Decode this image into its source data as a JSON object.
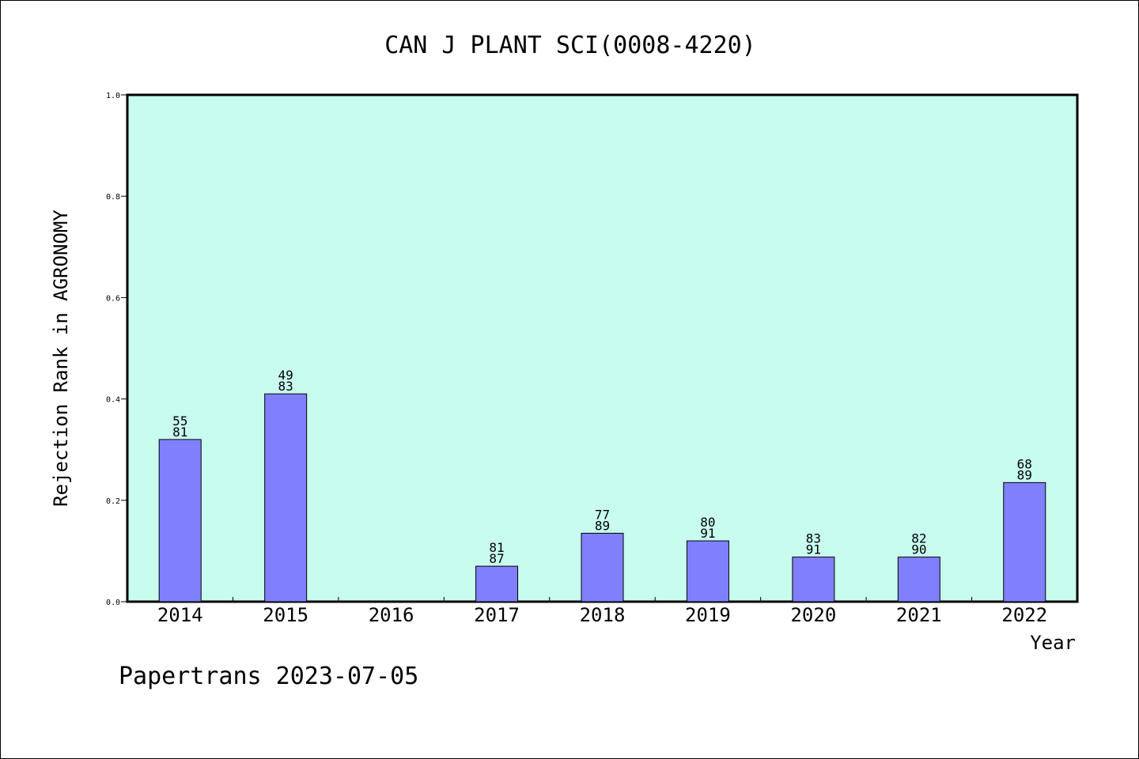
{
  "chart_data": {
    "type": "bar",
    "title": "CAN J PLANT SCI(0008-4220)",
    "xlabel": "Year",
    "ylabel": "Rejection Rank in AGRONOMY",
    "categories": [
      "2014",
      "2015",
      "2016",
      "2017",
      "2018",
      "2019",
      "2020",
      "2021",
      "2022"
    ],
    "values": [
      0.32,
      0.41,
      null,
      0.07,
      0.135,
      0.12,
      0.088,
      0.088,
      0.235
    ],
    "labels_top": [
      "55",
      "49",
      "",
      "81",
      "77",
      "80",
      "83",
      "82",
      "68"
    ],
    "labels_bottom": [
      "81",
      "83",
      "",
      "87",
      "89",
      "91",
      "91",
      "90",
      "89"
    ],
    "ylim": [
      0,
      1.0
    ],
    "yticks": [
      "0.0",
      "0.2",
      "0.4",
      "0.6",
      "0.8",
      "1.0"
    ],
    "grid": false,
    "colors": {
      "plot_bg": "#c8fcee",
      "bar": "#8080ff",
      "bar_edge": "#000000"
    }
  },
  "footer": {
    "text": "Papertrans 2023-07-05"
  }
}
